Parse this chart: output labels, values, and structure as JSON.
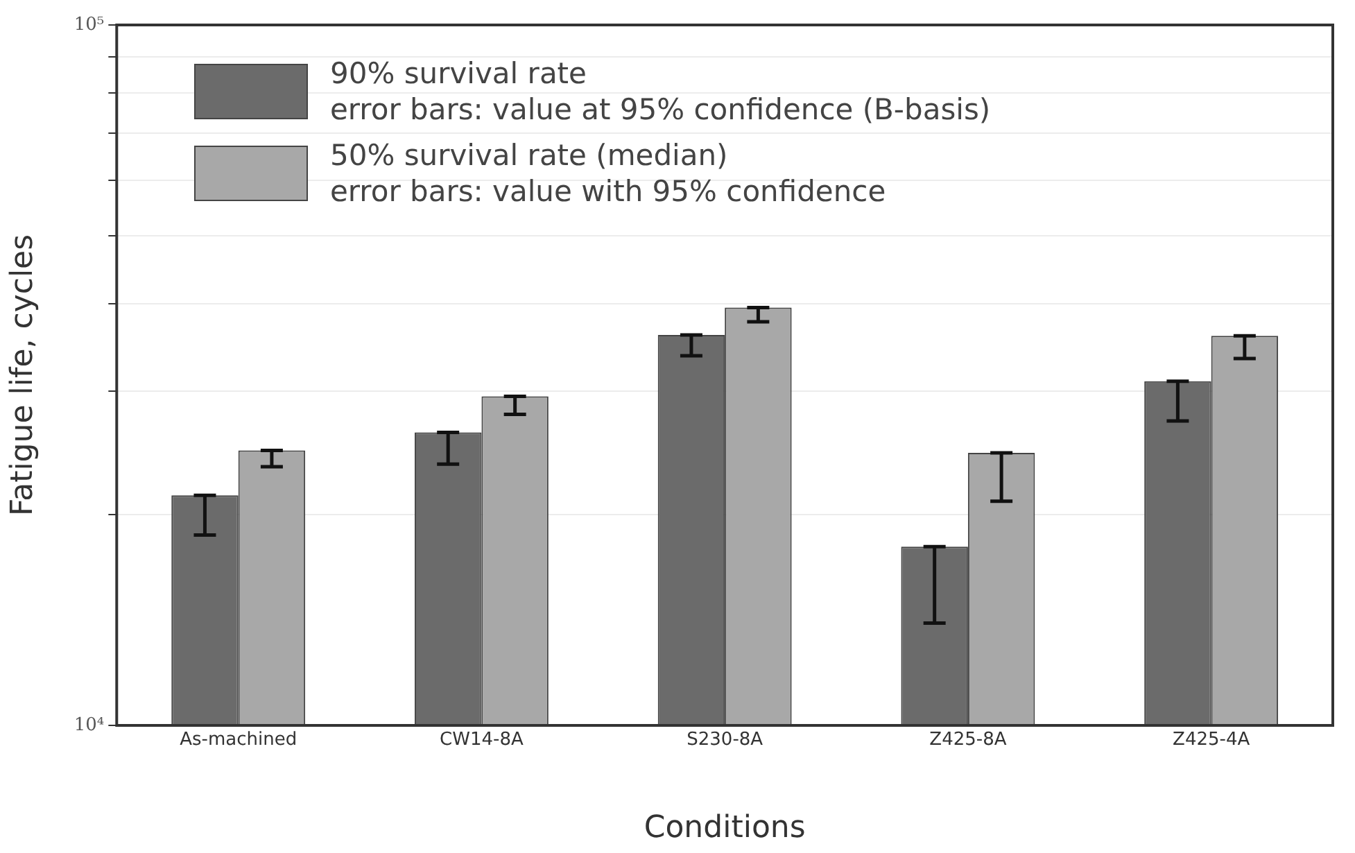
{
  "chart_data": {
    "type": "bar",
    "xlabel": "Conditions",
    "ylabel": "Fatigue life, cycles",
    "categories": [
      "As-machined",
      "CW14-8A",
      "S230-8A",
      "Z425-8A",
      "Z425-4A"
    ],
    "series": [
      {
        "name": "90% survival rate\nerror bars: value at 95% confidence (B-basis)",
        "color": "#6b6b6b",
        "values": [
          21300,
          26200,
          36100,
          18000,
          31000
        ],
        "errors": [
          [
            18700,
            21300
          ],
          [
            23600,
            26200
          ],
          [
            33700,
            36100
          ],
          [
            14000,
            18000
          ],
          [
            27200,
            31000
          ]
        ]
      },
      {
        "name": "50% survival rate (median)\nerror bars: value with 95% confidence",
        "color": "#a8a8a8",
        "values": [
          24700,
          29500,
          39500,
          24500,
          36000
        ],
        "errors": [
          [
            23400,
            24700
          ],
          [
            27800,
            29500
          ],
          [
            37700,
            39500
          ],
          [
            20900,
            24500
          ],
          [
            33400,
            36000
          ]
        ]
      }
    ],
    "log": "y",
    "ylim": [
      10000,
      100000
    ],
    "yticks": [
      {
        "value": 10000,
        "label": "10⁴"
      },
      {
        "value": 20000,
        "label": null
      },
      {
        "value": 30000,
        "label": null
      },
      {
        "value": 40000,
        "label": null
      },
      {
        "value": 50000,
        "label": null
      },
      {
        "value": 60000,
        "label": null
      },
      {
        "value": 70000,
        "label": null
      },
      {
        "value": 80000,
        "label": null
      },
      {
        "value": 90000,
        "label": null
      },
      {
        "value": 100000,
        "label": "10⁵"
      }
    ],
    "grid": "y",
    "legend": "top left"
  }
}
